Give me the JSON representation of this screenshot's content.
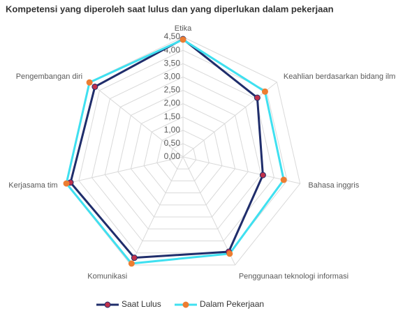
{
  "chart_data": {
    "type": "radar",
    "title": "Kompetensi yang diperoleh saat lulus dan yang diperlukan dalam pekerjaan",
    "categories": [
      "Etika",
      "Keahlian berdasarkan bidang ilmu",
      "Bahasa inggris",
      "Penggunaan teknologi informasi",
      "Komunikasi",
      "Kerjasama tim",
      "Pengembangan diri"
    ],
    "series": [
      {
        "name": "Saat Lulus",
        "color": "#1f2d6b",
        "marker_color": "#c0304a",
        "values": [
          4.42,
          3.56,
          3.07,
          3.95,
          4.2,
          4.32,
          4.22
        ]
      },
      {
        "name": "Dalam Pekerjaan",
        "color": "#3fe0f0",
        "marker_color": "#ed7d31",
        "values": [
          4.4,
          3.93,
          3.87,
          4.03,
          4.44,
          4.48,
          4.48
        ]
      }
    ],
    "ylim": [
      0,
      4.5
    ],
    "yticks": [
      {
        "value": 0,
        "label": "0,00"
      },
      {
        "value": 0.5,
        "label": "0,50"
      },
      {
        "value": 1,
        "label": "1,00"
      },
      {
        "value": 1.5,
        "label": "1,50"
      },
      {
        "value": 2,
        "label": "2,00"
      },
      {
        "value": 2.5,
        "label": "2,50"
      },
      {
        "value": 3,
        "label": "3,00"
      },
      {
        "value": 3.5,
        "label": "3,50"
      },
      {
        "value": 4,
        "label": "4,00"
      },
      {
        "value": 4.5,
        "label": "4,50"
      }
    ],
    "grid": true,
    "legend": "bottom"
  }
}
